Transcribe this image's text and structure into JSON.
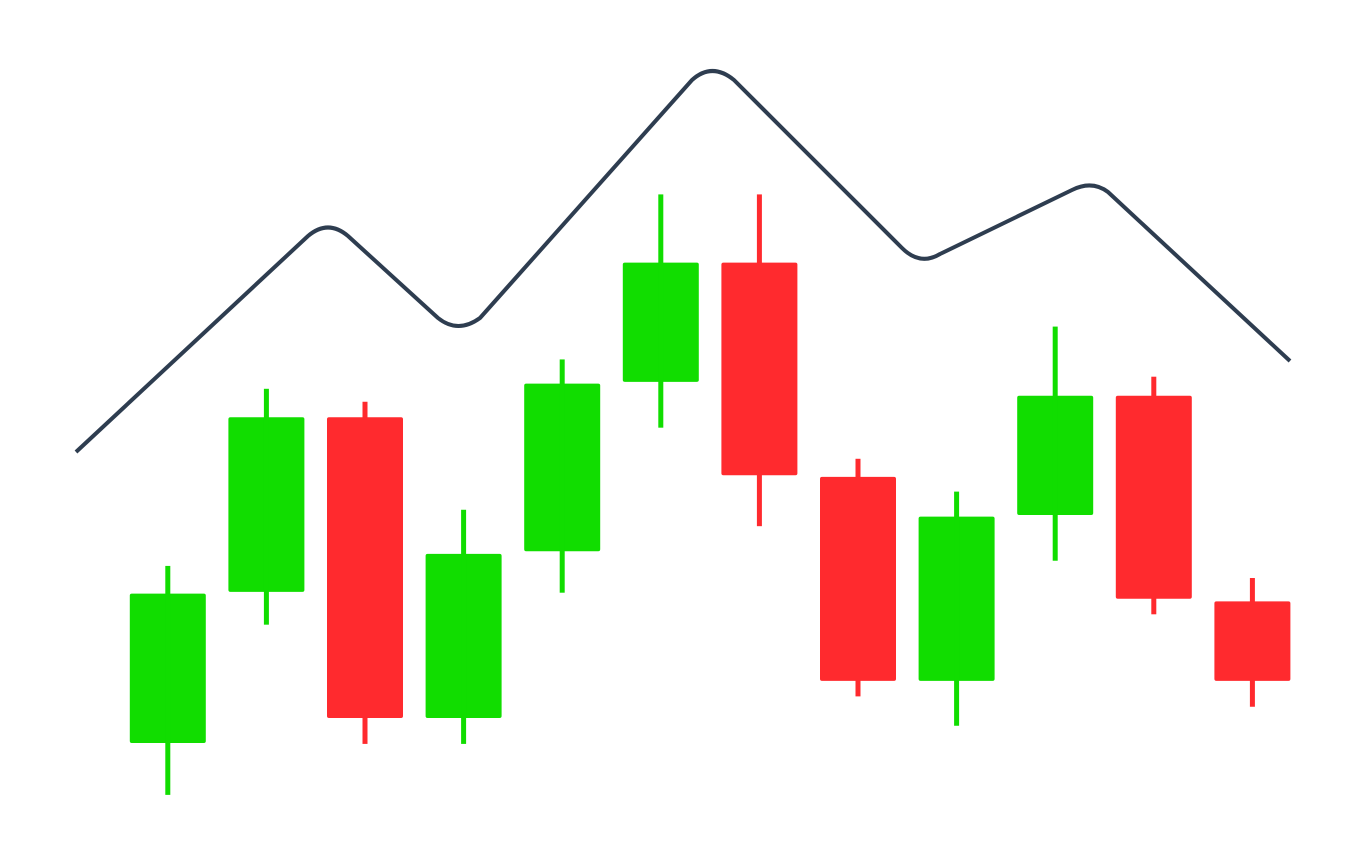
{
  "chart_data": {
    "type": "candlestick",
    "categories": [
      null,
      null,
      null,
      null,
      null,
      null,
      null,
      null,
      null,
      null,
      null,
      null
    ],
    "open": [
      14.0,
      31.5,
      51.7,
      16.9,
      36.2,
      55.8,
      69.6,
      44.8,
      21.2,
      40.4,
      54.2,
      30.4
    ],
    "high": [
      34.5,
      55.0,
      53.5,
      41.0,
      58.4,
      77.5,
      77.5,
      46.9,
      43.1,
      62.2,
      56.4,
      33.1
    ],
    "low": [
      8.0,
      27.7,
      13.9,
      13.9,
      31.4,
      50.5,
      39.1,
      19.4,
      16.0,
      35.1,
      28.9,
      18.2
    ],
    "close": [
      31.3,
      51.7,
      16.9,
      35.9,
      55.6,
      69.6,
      45.0,
      21.2,
      40.2,
      54.2,
      30.7,
      21.2
    ],
    "up_color": "#11dd00",
    "down_color": "#ff2a2e",
    "ylim": [
      0,
      100
    ]
  }
}
